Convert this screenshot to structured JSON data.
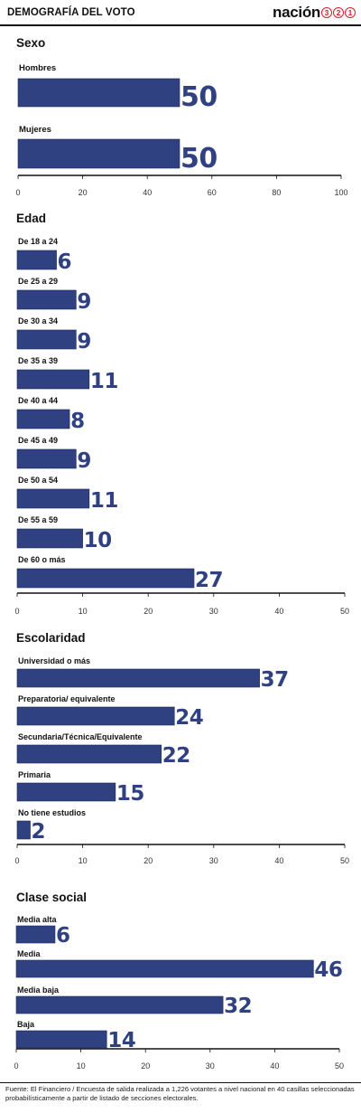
{
  "header": {
    "title": "DEMOGRAFÍA DEL VOTO",
    "brand_word": "nación",
    "brand_digits": [
      "3",
      "2",
      "1"
    ]
  },
  "colors": {
    "bar": "#2f4180",
    "value_text": "#2f4180",
    "brand_red": "#d51f2b",
    "axis": "#111111"
  },
  "chart_data": [
    {
      "type": "bar",
      "orientation": "horizontal",
      "title": "Sexo",
      "categories": [
        "Hombres",
        "Mujeres"
      ],
      "values": [
        50,
        50
      ],
      "xlim": [
        0,
        100
      ],
      "ticks": [
        0,
        20,
        40,
        60,
        80,
        100
      ],
      "grid": false
    },
    {
      "type": "bar",
      "orientation": "horizontal",
      "title": "Edad",
      "categories": [
        "De 18 a 24",
        "De 25 a 29",
        "De 30 a 34",
        "De 35 a 39",
        "De 40 a 44",
        "De 45 a 49",
        "De 50 a 54",
        "De 55 a 59",
        "De 60 o más"
      ],
      "values": [
        6,
        9,
        9,
        11,
        8,
        9,
        11,
        10,
        27
      ],
      "xlim": [
        0,
        50
      ],
      "ticks": [
        0,
        10,
        20,
        30,
        40,
        50
      ],
      "grid": false
    },
    {
      "type": "bar",
      "orientation": "horizontal",
      "title": "Escolaridad",
      "categories": [
        "Universidad o más",
        "Preparatoria/ equivalente",
        "Secundaria/Técnica/Equivalente",
        "Primaria",
        "No tiene estudios"
      ],
      "values": [
        37,
        24,
        22,
        15,
        2
      ],
      "xlim": [
        0,
        50
      ],
      "ticks": [
        0,
        10,
        20,
        30,
        40,
        50
      ],
      "grid": false
    },
    {
      "type": "bar",
      "orientation": "horizontal",
      "title": "Clase social",
      "categories": [
        "Media alta",
        "Media",
        "Media baja",
        "Baja"
      ],
      "values": [
        6,
        46,
        32,
        14
      ],
      "xlim": [
        0,
        50
      ],
      "ticks": [
        0,
        10,
        20,
        30,
        40,
        50
      ],
      "grid": false
    }
  ],
  "footer": {
    "source": "Fuente: El Financiero / Encuesta de salida realizada a 1,226 votantes a nivel nacional en 40 casillas seleccionadas probabilísticamente a partir de listado de secciones electorales."
  }
}
